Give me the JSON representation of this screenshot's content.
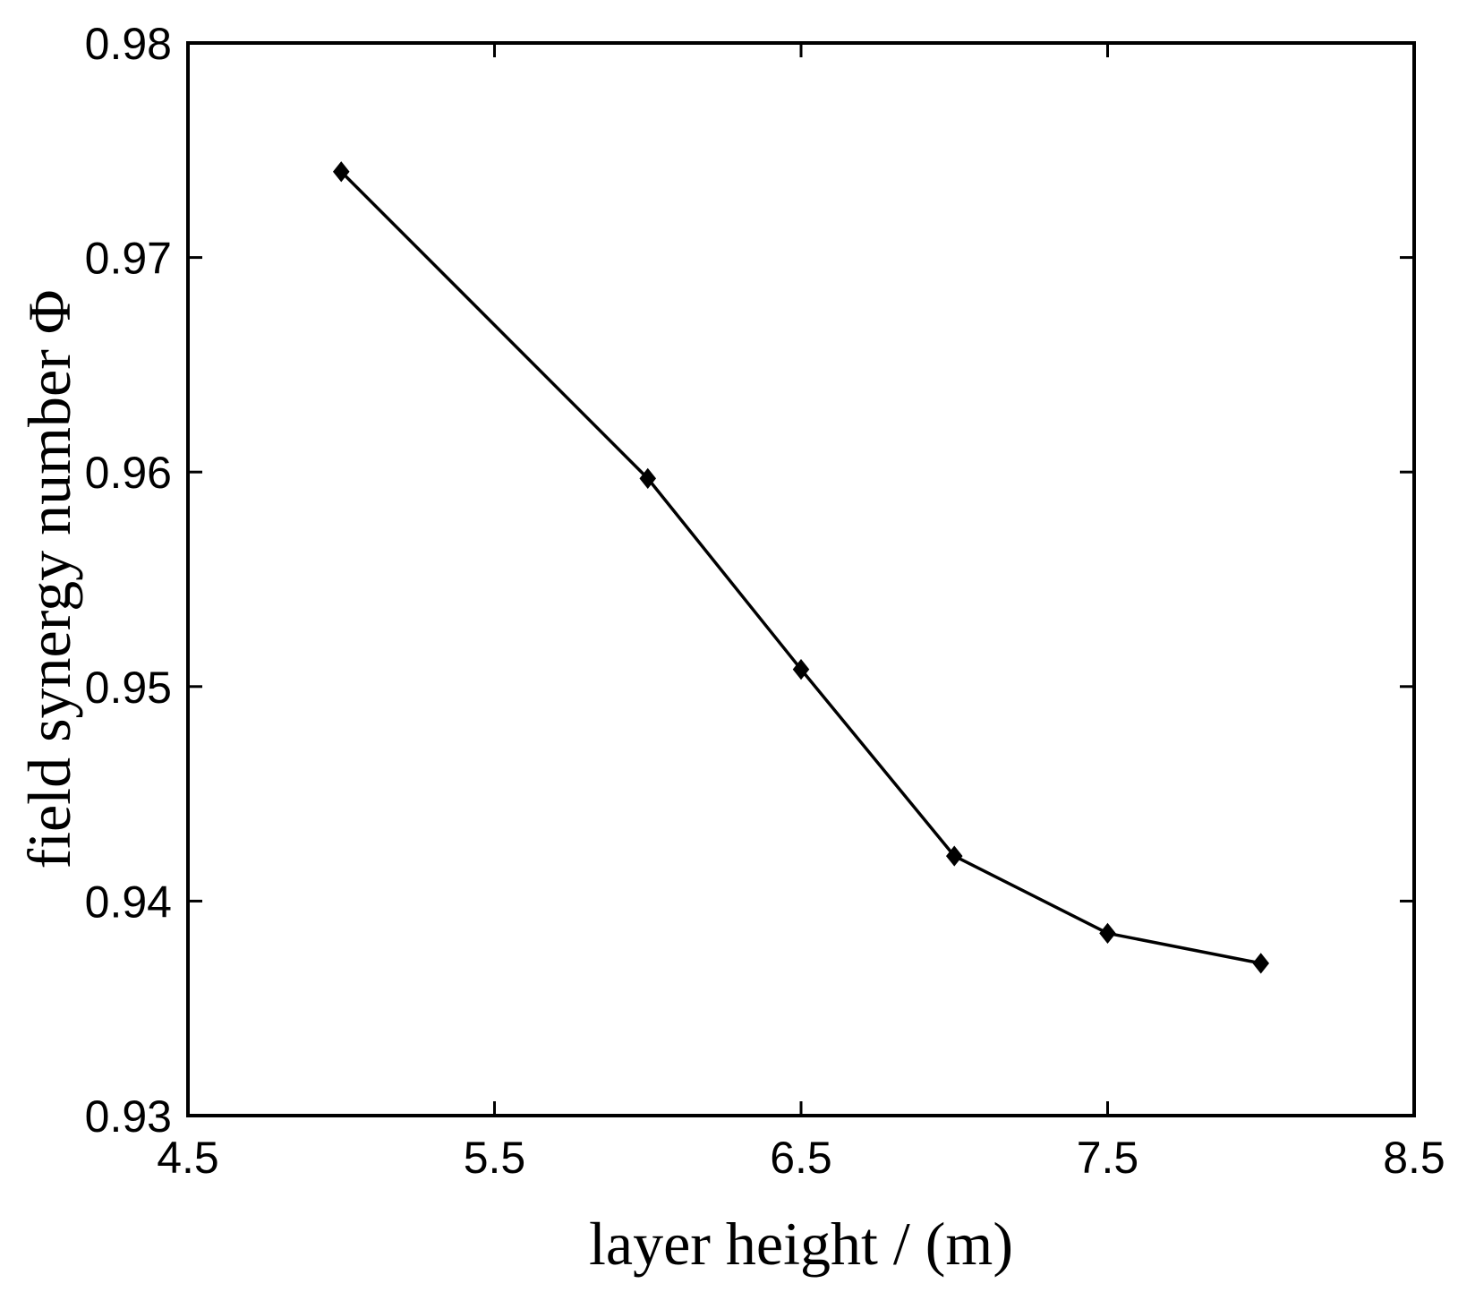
{
  "chart_data": {
    "type": "line",
    "title": "",
    "xlabel": "layer height / (m)",
    "ylabel": "field synergy number Φ",
    "xlim": [
      4.5,
      8.5
    ],
    "ylim": [
      0.93,
      0.98
    ],
    "xticks": [
      "4.5",
      "5.5",
      "6.5",
      "7.5",
      "8.5"
    ],
    "yticks": [
      "0.93",
      "0.94",
      "0.95",
      "0.96",
      "0.97",
      "0.98"
    ],
    "grid": false,
    "series": [
      {
        "x": [
          5,
          6,
          6.5,
          7,
          7.5,
          8
        ],
        "y": [
          0.974,
          0.9597,
          0.9508,
          0.9421,
          0.9385,
          0.9371
        ],
        "color": "#000000",
        "marker": "diamond"
      }
    ]
  }
}
